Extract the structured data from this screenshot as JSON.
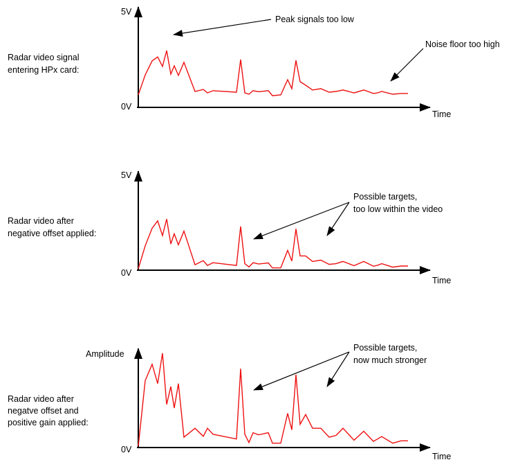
{
  "panels": [
    {
      "id": "raw",
      "description_lines": [
        "Radar video signal",
        "entering HPx card:"
      ],
      "y_max_label": "5V",
      "y_min_label": "0V",
      "x_label": "Time",
      "signal": [
        [
          0.0,
          0.76
        ],
        [
          5.0,
          2.14
        ],
        [
          10.0,
          3.1
        ],
        [
          14.0,
          3.37
        ],
        [
          17.5,
          2.72
        ],
        [
          20.5,
          3.81
        ],
        [
          23.5,
          2.19
        ],
        [
          26.0,
          2.76
        ],
        [
          29.0,
          2.1
        ],
        [
          33.0,
          3.0
        ],
        [
          41.0,
          1.0
        ],
        [
          47.0,
          1.14
        ],
        [
          50.0,
          0.9
        ],
        [
          54.0,
          1.05
        ],
        [
          71.0,
          0.95
        ],
        [
          74.0,
          3.19
        ],
        [
          77.0,
          0.9
        ],
        [
          80.0,
          0.81
        ],
        [
          83.0,
          1.05
        ],
        [
          87.0,
          0.98
        ],
        [
          94.0,
          1.05
        ],
        [
          97.0,
          0.71
        ],
        [
          103.0,
          0.76
        ],
        [
          108.0,
          1.81
        ],
        [
          111.0,
          1.19
        ],
        [
          114.0,
          3.14
        ],
        [
          117.0,
          1.67
        ],
        [
          121.0,
          1.43
        ],
        [
          126.0,
          1.1
        ],
        [
          132.0,
          1.19
        ],
        [
          138.0,
          0.95
        ],
        [
          143.0,
          1.0
        ],
        [
          148.0,
          1.1
        ],
        [
          156.0,
          0.9
        ],
        [
          163.0,
          1.1
        ],
        [
          170.0,
          0.86
        ],
        [
          173.0,
          0.9
        ],
        [
          176.0,
          1.0
        ],
        [
          184.0,
          0.81
        ],
        [
          190.0,
          0.86
        ],
        [
          195.0,
          0.86
        ]
      ],
      "callouts": [
        {
          "lines": [
            "Peak signals too low"
          ]
        },
        {
          "lines": [
            "Noise floor too high"
          ]
        }
      ]
    },
    {
      "id": "offset",
      "description_lines": [
        "Radar video after",
        "negative offset applied:"
      ],
      "y_max_label": "5V",
      "y_min_label": "0V",
      "x_label": "Time",
      "signal": [
        [
          0.0,
          0.0
        ],
        [
          5.0,
          1.25
        ],
        [
          10.0,
          2.2
        ],
        [
          14.0,
          2.6
        ],
        [
          17.5,
          1.8
        ],
        [
          20.5,
          2.7
        ],
        [
          23.5,
          1.35
        ],
        [
          26.0,
          1.9
        ],
        [
          29.0,
          1.3
        ],
        [
          33.0,
          2.05
        ],
        [
          41.0,
          0.22
        ],
        [
          47.0,
          0.44
        ],
        [
          50.0,
          0.18
        ],
        [
          54.0,
          0.33
        ],
        [
          71.0,
          0.18
        ],
        [
          74.0,
          2.3
        ],
        [
          77.0,
          0.28
        ],
        [
          80.0,
          0.1
        ],
        [
          83.0,
          0.33
        ],
        [
          87.0,
          0.26
        ],
        [
          94.0,
          0.32
        ],
        [
          97.0,
          0.05
        ],
        [
          103.0,
          0.05
        ],
        [
          108.0,
          1.0
        ],
        [
          111.0,
          0.42
        ],
        [
          114.0,
          2.17
        ],
        [
          117.0,
          0.7
        ],
        [
          121.0,
          0.7
        ],
        [
          126.0,
          0.4
        ],
        [
          132.0,
          0.47
        ],
        [
          138.0,
          0.24
        ],
        [
          143.0,
          0.28
        ],
        [
          148.0,
          0.4
        ],
        [
          156.0,
          0.17
        ],
        [
          163.0,
          0.4
        ],
        [
          170.0,
          0.14
        ],
        [
          173.0,
          0.19
        ],
        [
          176.0,
          0.28
        ],
        [
          184.0,
          0.09
        ],
        [
          190.0,
          0.15
        ],
        [
          195.0,
          0.15
        ]
      ],
      "callouts": [
        {
          "lines": [
            "Possible targets,",
            "too low within the video"
          ]
        }
      ]
    },
    {
      "id": "gain",
      "description_lines": [
        "Radar video after",
        "negatve offset and",
        "positive gain applied:"
      ],
      "y_max_label": "Amplitude",
      "y_min_label": "0V",
      "x_label": "Time",
      "signal": [
        [
          0.0,
          0.0
        ],
        [
          5.0,
          2.2
        ],
        [
          10.0,
          2.75
        ],
        [
          14.0,
          2.1
        ],
        [
          17.5,
          3.12
        ],
        [
          20.5,
          1.4
        ],
        [
          23.5,
          2.0
        ],
        [
          26.0,
          1.28
        ],
        [
          29.0,
          2.1
        ],
        [
          33.0,
          0.3
        ],
        [
          41.0,
          0.6
        ],
        [
          47.0,
          0.33
        ],
        [
          50.0,
          0.6
        ],
        [
          54.0,
          0.4
        ],
        [
          71.0,
          0.24
        ],
        [
          74.0,
          2.6
        ],
        [
          77.0,
          0.4
        ],
        [
          80.0,
          0.12
        ],
        [
          83.0,
          0.45
        ],
        [
          87.0,
          0.38
        ],
        [
          94.0,
          0.45
        ],
        [
          97.0,
          0.1
        ],
        [
          103.0,
          0.1
        ],
        [
          108.0,
          1.1
        ],
        [
          111.0,
          0.55
        ],
        [
          114.0,
          2.4
        ],
        [
          117.0,
          0.73
        ],
        [
          121.0,
          1.06
        ],
        [
          126.0,
          0.6
        ],
        [
          132.0,
          0.6
        ],
        [
          138.0,
          0.3
        ],
        [
          143.0,
          0.36
        ],
        [
          148.0,
          0.6
        ],
        [
          156.0,
          0.2
        ],
        [
          163.0,
          0.5
        ],
        [
          170.0,
          0.16
        ],
        [
          173.0,
          0.24
        ],
        [
          176.0,
          0.32
        ],
        [
          184.0,
          0.1
        ],
        [
          190.0,
          0.18
        ],
        [
          195.0,
          0.18
        ]
      ],
      "callouts": [
        {
          "lines": [
            "Possible targets,",
            "now much stronger"
          ]
        }
      ]
    }
  ],
  "colors": {
    "signal": "#ee1111",
    "axis": "#000000",
    "background": "#ffffff"
  }
}
